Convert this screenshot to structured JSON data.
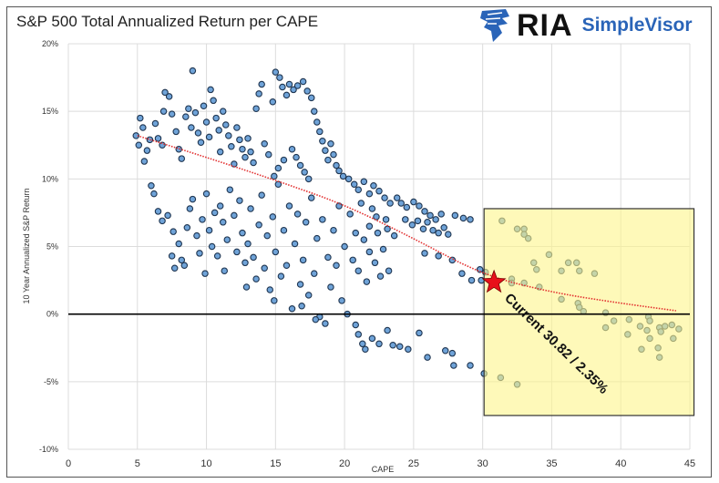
{
  "header": {
    "title": "S&P 500 Total Annualized Return per CAPE"
  },
  "logo": {
    "brand": "RIA",
    "product": "SimpleVisor"
  },
  "colors": {
    "point_fill": "#6fa3d8",
    "point_stroke": "#1f3550",
    "trend": "#e23030",
    "highlight_box": "#fdf58a",
    "star": "#e8101a",
    "brand_blue": "#2a64b8"
  },
  "chart_data": {
    "type": "scatter",
    "title": "S&P 500 Total Annualized Return per CAPE",
    "xlabel": "CAPE",
    "ylabel": "10 Year Annualized S&P Return",
    "xlim": [
      0,
      45
    ],
    "ylim": [
      -10,
      20
    ],
    "xticks": [
      0,
      5,
      10,
      15,
      20,
      25,
      30,
      35,
      40,
      45
    ],
    "xtick_labels": [
      "0",
      "5",
      "10",
      "15",
      "20",
      "25",
      "30",
      "35",
      "40",
      "45"
    ],
    "yticks": [
      -10,
      -5,
      0,
      5,
      10,
      15,
      20
    ],
    "ytick_labels": [
      "-10%",
      "-5%",
      "0%",
      "5%",
      "10%",
      "15%",
      "20%"
    ],
    "grid": true,
    "points": [
      [
        4.9,
        13.2
      ],
      [
        5.1,
        12.5
      ],
      [
        5.2,
        14.5
      ],
      [
        5.4,
        13.8
      ],
      [
        5.5,
        11.3
      ],
      [
        5.7,
        12.1
      ],
      [
        5.9,
        12.9
      ],
      [
        6.0,
        9.5
      ],
      [
        6.2,
        8.9
      ],
      [
        6.3,
        14.1
      ],
      [
        6.5,
        13.0
      ],
      [
        6.8,
        12.5
      ],
      [
        6.9,
        15.0
      ],
      [
        7.0,
        16.4
      ],
      [
        7.3,
        16.1
      ],
      [
        7.5,
        14.8
      ],
      [
        7.8,
        13.5
      ],
      [
        8.0,
        12.2
      ],
      [
        8.2,
        11.5
      ],
      [
        8.5,
        14.6
      ],
      [
        8.7,
        15.2
      ],
      [
        8.9,
        13.8
      ],
      [
        9.0,
        18.0
      ],
      [
        9.2,
        14.9
      ],
      [
        9.4,
        13.4
      ],
      [
        9.6,
        12.7
      ],
      [
        9.8,
        15.4
      ],
      [
        10.0,
        14.2
      ],
      [
        10.2,
        13.1
      ],
      [
        10.3,
        16.6
      ],
      [
        10.5,
        15.8
      ],
      [
        10.7,
        14.5
      ],
      [
        10.9,
        13.6
      ],
      [
        11.0,
        12.0
      ],
      [
        11.2,
        15.0
      ],
      [
        11.4,
        14.0
      ],
      [
        11.6,
        13.2
      ],
      [
        11.8,
        12.4
      ],
      [
        12.0,
        11.1
      ],
      [
        12.2,
        13.8
      ],
      [
        12.4,
        12.9
      ],
      [
        12.6,
        12.2
      ],
      [
        12.8,
        11.6
      ],
      [
        13.0,
        13.0
      ],
      [
        13.2,
        12.0
      ],
      [
        13.4,
        11.2
      ],
      [
        13.6,
        15.2
      ],
      [
        13.8,
        16.3
      ],
      [
        14.0,
        17.0
      ],
      [
        14.2,
        12.6
      ],
      [
        14.5,
        11.8
      ],
      [
        14.8,
        15.7
      ],
      [
        15.0,
        17.9
      ],
      [
        15.3,
        17.5
      ],
      [
        15.5,
        16.8
      ],
      [
        15.8,
        16.2
      ],
      [
        16.0,
        17.0
      ],
      [
        16.3,
        16.6
      ],
      [
        16.6,
        16.9
      ],
      [
        17.0,
        17.2
      ],
      [
        17.3,
        16.5
      ],
      [
        17.6,
        16.0
      ],
      [
        17.8,
        15.0
      ],
      [
        18.0,
        14.2
      ],
      [
        18.2,
        13.5
      ],
      [
        18.4,
        12.8
      ],
      [
        18.6,
        12.1
      ],
      [
        18.8,
        11.4
      ],
      [
        19.0,
        12.6
      ],
      [
        19.2,
        11.8
      ],
      [
        19.4,
        11.0
      ],
      [
        19.6,
        10.6
      ],
      [
        19.9,
        10.2
      ],
      [
        16.2,
        12.2
      ],
      [
        16.5,
        11.6
      ],
      [
        16.8,
        11.0
      ],
      [
        17.1,
        10.5
      ],
      [
        17.4,
        10.0
      ],
      [
        15.6,
        11.4
      ],
      [
        15.2,
        10.8
      ],
      [
        14.9,
        10.2
      ],
      [
        20.3,
        10.0
      ],
      [
        20.7,
        9.6
      ],
      [
        21.0,
        9.2
      ],
      [
        21.4,
        9.8
      ],
      [
        21.8,
        8.9
      ],
      [
        22.1,
        9.5
      ],
      [
        22.5,
        9.1
      ],
      [
        22.9,
        8.6
      ],
      [
        23.3,
        8.2
      ],
      [
        23.8,
        8.6
      ],
      [
        24.1,
        8.2
      ],
      [
        24.5,
        7.9
      ],
      [
        25.0,
        8.3
      ],
      [
        25.4,
        8.0
      ],
      [
        25.8,
        7.6
      ],
      [
        26.2,
        7.3
      ],
      [
        26.6,
        7.0
      ],
      [
        27.0,
        7.4
      ],
      [
        28.0,
        7.3
      ],
      [
        28.6,
        7.1
      ],
      [
        29.1,
        7.0
      ],
      [
        24.4,
        7.0
      ],
      [
        24.9,
        6.6
      ],
      [
        25.3,
        6.9
      ],
      [
        25.7,
        6.3
      ],
      [
        26.0,
        6.8
      ],
      [
        26.4,
        6.2
      ],
      [
        26.8,
        6.0
      ],
      [
        27.2,
        6.4
      ],
      [
        27.5,
        5.9
      ],
      [
        22.3,
        7.2
      ],
      [
        21.8,
        6.5
      ],
      [
        23.1,
        6.3
      ],
      [
        23.6,
        5.8
      ],
      [
        26.8,
        4.3
      ],
      [
        27.8,
        4.0
      ],
      [
        28.5,
        3.0
      ],
      [
        29.2,
        2.5
      ],
      [
        29.8,
        3.3
      ],
      [
        29.9,
        2.5
      ],
      [
        25.8,
        4.5
      ],
      [
        6.5,
        7.6
      ],
      [
        6.8,
        6.9
      ],
      [
        7.2,
        7.3
      ],
      [
        7.6,
        6.1
      ],
      [
        7.5,
        4.3
      ],
      [
        7.7,
        3.4
      ],
      [
        8.0,
        5.2
      ],
      [
        8.2,
        4.0
      ],
      [
        8.4,
        3.6
      ],
      [
        8.6,
        6.4
      ],
      [
        8.8,
        7.8
      ],
      [
        9.0,
        8.5
      ],
      [
        9.3,
        5.8
      ],
      [
        9.5,
        4.5
      ],
      [
        9.7,
        7.0
      ],
      [
        10.0,
        8.9
      ],
      [
        10.2,
        6.2
      ],
      [
        10.4,
        5.0
      ],
      [
        10.6,
        7.5
      ],
      [
        10.8,
        4.3
      ],
      [
        11.0,
        8.0
      ],
      [
        11.2,
        6.8
      ],
      [
        11.5,
        5.5
      ],
      [
        11.7,
        9.2
      ],
      [
        12.0,
        7.3
      ],
      [
        12.2,
        4.6
      ],
      [
        12.4,
        8.4
      ],
      [
        12.6,
        6.0
      ],
      [
        12.8,
        3.8
      ],
      [
        13.0,
        5.2
      ],
      [
        13.2,
        7.8
      ],
      [
        13.4,
        4.2
      ],
      [
        13.6,
        2.6
      ],
      [
        13.8,
        6.6
      ],
      [
        14.0,
        8.8
      ],
      [
        14.2,
        3.4
      ],
      [
        14.4,
        5.8
      ],
      [
        14.6,
        1.8
      ],
      [
        14.8,
        7.2
      ],
      [
        15.0,
        4.6
      ],
      [
        15.2,
        9.6
      ],
      [
        15.4,
        2.8
      ],
      [
        15.6,
        6.2
      ],
      [
        15.8,
        3.6
      ],
      [
        16.0,
        8.0
      ],
      [
        16.2,
        0.4
      ],
      [
        16.4,
        5.2
      ],
      [
        16.6,
        7.4
      ],
      [
        16.8,
        2.2
      ],
      [
        17.0,
        4.0
      ],
      [
        17.2,
        6.8
      ],
      [
        17.4,
        1.4
      ],
      [
        17.6,
        8.6
      ],
      [
        17.8,
        3.0
      ],
      [
        18.0,
        5.6
      ],
      [
        18.2,
        -0.2
      ],
      [
        18.4,
        7.0
      ],
      [
        18.6,
        -0.7
      ],
      [
        18.8,
        4.2
      ],
      [
        19.0,
        2.0
      ],
      [
        19.2,
        6.2
      ],
      [
        19.4,
        3.6
      ],
      [
        19.6,
        8.0
      ],
      [
        19.8,
        1.0
      ],
      [
        20.0,
        5.0
      ],
      [
        20.2,
        0.0
      ],
      [
        20.4,
        7.4
      ],
      [
        20.6,
        4.0
      ],
      [
        20.8,
        6.0
      ],
      [
        21.0,
        3.2
      ],
      [
        21.2,
        8.2
      ],
      [
        21.4,
        5.5
      ],
      [
        21.6,
        2.4
      ],
      [
        21.8,
        4.6
      ],
      [
        22.0,
        7.8
      ],
      [
        22.2,
        3.8
      ],
      [
        22.4,
        6.0
      ],
      [
        22.6,
        2.8
      ],
      [
        22.8,
        4.8
      ],
      [
        23.0,
        7.0
      ],
      [
        23.2,
        3.2
      ],
      [
        9.9,
        3.0
      ],
      [
        11.3,
        3.2
      ],
      [
        12.9,
        2.0
      ],
      [
        14.9,
        1.0
      ],
      [
        16.9,
        0.6
      ],
      [
        17.9,
        -0.4
      ],
      [
        20.8,
        -0.8
      ],
      [
        21.0,
        -1.5
      ],
      [
        21.3,
        -2.2
      ],
      [
        21.5,
        -2.6
      ],
      [
        22.0,
        -1.8
      ],
      [
        22.5,
        -2.2
      ],
      [
        23.1,
        -1.2
      ],
      [
        23.5,
        -2.3
      ],
      [
        24.0,
        -2.4
      ],
      [
        24.6,
        -2.6
      ],
      [
        25.4,
        -1.4
      ],
      [
        26.0,
        -3.2
      ],
      [
        27.3,
        -2.7
      ],
      [
        27.8,
        -2.9
      ],
      [
        27.9,
        -3.8
      ],
      [
        29.1,
        -3.8
      ],
      [
        30.1,
        -4.4
      ],
      [
        31.4,
        6.9
      ],
      [
        32.5,
        6.3
      ],
      [
        33.0,
        6.3
      ],
      [
        33.0,
        5.9
      ],
      [
        33.3,
        5.6
      ],
      [
        34.8,
        4.4
      ],
      [
        33.7,
        3.8
      ],
      [
        33.9,
        3.3
      ],
      [
        35.7,
        3.2
      ],
      [
        36.2,
        3.8
      ],
      [
        36.8,
        3.8
      ],
      [
        37.0,
        3.2
      ],
      [
        38.1,
        3.0
      ],
      [
        30.2,
        3.1
      ],
      [
        32.1,
        2.6
      ],
      [
        32.1,
        2.3
      ],
      [
        33.0,
        2.3
      ],
      [
        34.1,
        2.0
      ],
      [
        35.7,
        1.1
      ],
      [
        36.9,
        0.8
      ],
      [
        37.0,
        0.5
      ],
      [
        37.3,
        0.2
      ],
      [
        38.9,
        0.1
      ],
      [
        38.9,
        -1.0
      ],
      [
        39.5,
        -0.5
      ],
      [
        40.6,
        -0.4
      ],
      [
        40.5,
        -1.5
      ],
      [
        41.4,
        -0.9
      ],
      [
        41.5,
        -2.6
      ],
      [
        41.9,
        -1.2
      ],
      [
        42.0,
        -0.2
      ],
      [
        42.1,
        -0.5
      ],
      [
        42.1,
        -1.8
      ],
      [
        42.7,
        -2.5
      ],
      [
        42.8,
        -3.2
      ],
      [
        42.8,
        -1.0
      ],
      [
        43.2,
        -0.9
      ],
      [
        43.7,
        -0.8
      ],
      [
        44.2,
        -1.1
      ],
      [
        43.8,
        -1.8
      ],
      [
        42.9,
        -1.3
      ],
      [
        31.3,
        -4.7
      ],
      [
        32.5,
        -5.2
      ]
    ],
    "trendline": [
      [
        5,
        13.2
      ],
      [
        10,
        11.6
      ],
      [
        15,
        9.9
      ],
      [
        20,
        8.1
      ],
      [
        25,
        5.6
      ],
      [
        30,
        2.9
      ],
      [
        35,
        1.6
      ],
      [
        40,
        0.8
      ],
      [
        44,
        0.25
      ]
    ],
    "highlight_region": {
      "x": [
        30.1,
        45.3
      ],
      "y": [
        -7.5,
        7.8
      ]
    },
    "current": {
      "x": 30.82,
      "y": 2.35
    },
    "annotation": "Current  30.82 / 2.35%"
  }
}
